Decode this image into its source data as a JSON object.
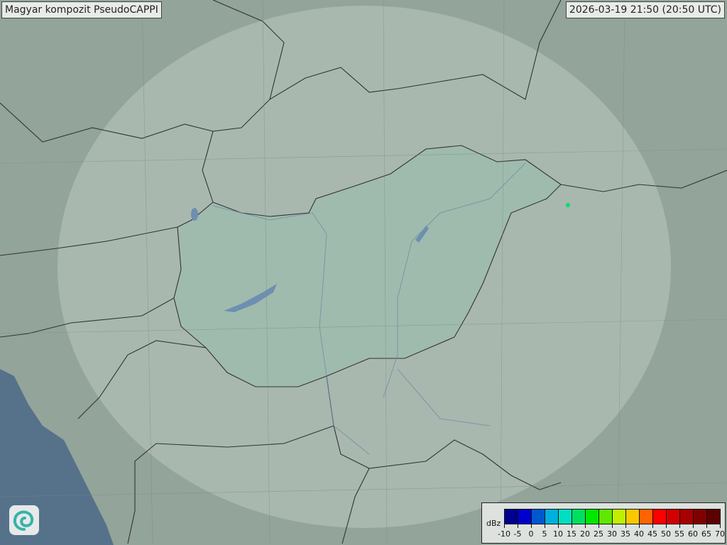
{
  "header": {
    "title": "Magyar kompozit  PseudoCAPPI",
    "timestamp": "2026-03-19 21:50 (20:50 UTC)"
  },
  "legend": {
    "unit": "dBz",
    "labels": [
      "-10",
      "-5",
      "0",
      "5",
      "10",
      "15",
      "20",
      "25",
      "30",
      "35",
      "40",
      "45",
      "50",
      "55",
      "60",
      "65",
      "70"
    ],
    "colors": [
      "#00008f",
      "#0000cc",
      "#0058d0",
      "#00b0dc",
      "#00e0c0",
      "#00e060",
      "#00e800",
      "#60e800",
      "#c0f000",
      "#f8c800",
      "#ff6400",
      "#ff0000",
      "#d40000",
      "#a80000",
      "#800000",
      "#5c0000"
    ]
  },
  "logo": {
    "icon": "omsz-swirl-logo"
  },
  "map": {
    "echo_color": "#00e070"
  }
}
